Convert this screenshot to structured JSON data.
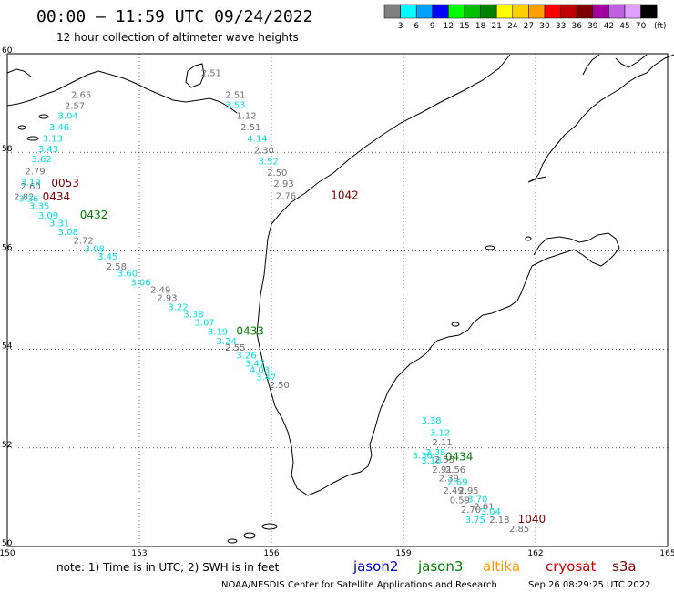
{
  "header": {
    "title": "00:00 – 11:59 UTC 09/24/2022",
    "subtitle": "12 hour collection of altimeter wave heights"
  },
  "color_scale": {
    "unit_label": "(ft)",
    "bins": [
      {
        "label": "3",
        "color": "#808080"
      },
      {
        "label": "6",
        "color": "#00ffff"
      },
      {
        "label": "9",
        "color": "#00a0ff"
      },
      {
        "label": "12",
        "color": "#0000ff"
      },
      {
        "label": "15",
        "color": "#00ff00"
      },
      {
        "label": "18",
        "color": "#00c000"
      },
      {
        "label": "21",
        "color": "#008000"
      },
      {
        "label": "24",
        "color": "#ffff00"
      },
      {
        "label": "27",
        "color": "#ffd000"
      },
      {
        "label": "30",
        "color": "#ffa000"
      },
      {
        "label": "33",
        "color": "#ff0000"
      },
      {
        "label": "36",
        "color": "#c00000"
      },
      {
        "label": "39",
        "color": "#800000"
      },
      {
        "label": "42",
        "color": "#a000a0"
      },
      {
        "label": "45",
        "color": "#c060e0"
      },
      {
        "label": "70",
        "color": "#e0a0ff"
      },
      {
        "label": "",
        "color": "#000000"
      }
    ]
  },
  "map": {
    "lon_range": [
      150,
      165
    ],
    "lat_range": [
      50,
      60
    ],
    "lon_ticks": [
      {
        "label": "150",
        "value": 150
      },
      {
        "label": "153",
        "value": 153
      },
      {
        "label": "156",
        "value": 156
      },
      {
        "label": "159",
        "value": 159
      },
      {
        "label": "162",
        "value": 162
      },
      {
        "label": "165",
        "value": 165
      }
    ],
    "lat_ticks": [
      {
        "label": "60",
        "value": 60
      },
      {
        "label": "58",
        "value": 58
      },
      {
        "label": "56",
        "value": 56
      },
      {
        "label": "54",
        "value": 54
      },
      {
        "label": "52",
        "value": 52
      },
      {
        "label": "50",
        "value": 50
      }
    ],
    "colors": {
      "gray": "#707070",
      "cyan": "#00e0e0",
      "green": "#008000",
      "maroon": "#800000"
    }
  },
  "wave_labels": [
    {
      "text": "2.51",
      "lon": 154.4,
      "lat": 59.55,
      "color": "gray"
    },
    {
      "text": "2.65",
      "lon": 151.45,
      "lat": 59.1,
      "color": "gray"
    },
    {
      "text": "2.57",
      "lon": 151.3,
      "lat": 58.88,
      "color": "gray"
    },
    {
      "text": "3.04",
      "lon": 151.15,
      "lat": 58.68,
      "color": "cyan"
    },
    {
      "text": "3.46",
      "lon": 150.95,
      "lat": 58.45,
      "color": "cyan"
    },
    {
      "text": "3.13",
      "lon": 150.8,
      "lat": 58.22,
      "color": "cyan"
    },
    {
      "text": "3.43",
      "lon": 150.7,
      "lat": 58.0,
      "color": "cyan"
    },
    {
      "text": "3.62",
      "lon": 150.55,
      "lat": 57.8,
      "color": "cyan"
    },
    {
      "text": "2.79",
      "lon": 150.4,
      "lat": 57.55,
      "color": "gray"
    },
    {
      "text": "3.19",
      "lon": 150.3,
      "lat": 57.33,
      "color": "cyan"
    },
    {
      "text": "2.60",
      "lon": 150.3,
      "lat": 57.25,
      "color": "gray"
    },
    {
      "text": "2.82",
      "lon": 150.15,
      "lat": 57.03,
      "color": "gray"
    },
    {
      "text": "3.36",
      "lon": 150.25,
      "lat": 57.0,
      "color": "cyan"
    },
    {
      "text": "3.35",
      "lon": 150.5,
      "lat": 56.85,
      "color": "cyan"
    },
    {
      "text": "3.09",
      "lon": 150.7,
      "lat": 56.65,
      "color": "cyan"
    },
    {
      "text": "3.31",
      "lon": 150.95,
      "lat": 56.5,
      "color": "cyan"
    },
    {
      "text": "3.08",
      "lon": 151.15,
      "lat": 56.32,
      "color": "cyan"
    },
    {
      "text": "2.72",
      "lon": 151.5,
      "lat": 56.15,
      "color": "gray"
    },
    {
      "text": "3.08",
      "lon": 151.75,
      "lat": 55.98,
      "color": "cyan"
    },
    {
      "text": "3.45",
      "lon": 152.05,
      "lat": 55.82,
      "color": "cyan"
    },
    {
      "text": "2.58",
      "lon": 152.25,
      "lat": 55.62,
      "color": "gray"
    },
    {
      "text": "3.60",
      "lon": 152.5,
      "lat": 55.48,
      "color": "cyan"
    },
    {
      "text": "3.06",
      "lon": 152.8,
      "lat": 55.3,
      "color": "cyan"
    },
    {
      "text": "2.49",
      "lon": 153.25,
      "lat": 55.15,
      "color": "gray"
    },
    {
      "text": "2.93",
      "lon": 153.4,
      "lat": 54.98,
      "color": "gray"
    },
    {
      "text": "3.22",
      "lon": 153.65,
      "lat": 54.8,
      "color": "cyan"
    },
    {
      "text": "3.38",
      "lon": 154.0,
      "lat": 54.65,
      "color": "cyan"
    },
    {
      "text": "3.07",
      "lon": 154.25,
      "lat": 54.48,
      "color": "cyan"
    },
    {
      "text": "3.19",
      "lon": 154.55,
      "lat": 54.3,
      "color": "cyan"
    },
    {
      "text": "3.24",
      "lon": 154.75,
      "lat": 54.1,
      "color": "cyan"
    },
    {
      "text": "2.55",
      "lon": 154.95,
      "lat": 53.97,
      "color": "gray"
    },
    {
      "text": "3.26",
      "lon": 155.2,
      "lat": 53.82,
      "color": "cyan"
    },
    {
      "text": "3.47",
      "lon": 155.4,
      "lat": 53.65,
      "color": "cyan"
    },
    {
      "text": "4.03",
      "lon": 155.5,
      "lat": 53.52,
      "color": "cyan"
    },
    {
      "text": "3.47",
      "lon": 155.65,
      "lat": 53.37,
      "color": "cyan"
    },
    {
      "text": "2.50",
      "lon": 155.95,
      "lat": 53.22,
      "color": "gray"
    },
    {
      "text": "2.51",
      "lon": 154.95,
      "lat": 59.1,
      "color": "gray"
    },
    {
      "text": "3.53",
      "lon": 154.95,
      "lat": 58.9,
      "color": "cyan"
    },
    {
      "text": "1.12",
      "lon": 155.2,
      "lat": 58.68,
      "color": "gray"
    },
    {
      "text": "2.51",
      "lon": 155.3,
      "lat": 58.45,
      "color": "gray"
    },
    {
      "text": "4.14",
      "lon": 155.45,
      "lat": 58.22,
      "color": "cyan"
    },
    {
      "text": "2.30",
      "lon": 155.6,
      "lat": 57.98,
      "color": "gray"
    },
    {
      "text": "3.52",
      "lon": 155.7,
      "lat": 57.75,
      "color": "cyan"
    },
    {
      "text": "2.50",
      "lon": 155.9,
      "lat": 57.52,
      "color": "gray"
    },
    {
      "text": "2.93",
      "lon": 156.05,
      "lat": 57.3,
      "color": "gray"
    },
    {
      "text": "2.76",
      "lon": 156.1,
      "lat": 57.05,
      "color": "gray"
    },
    {
      "text": "3.38",
      "lon": 159.4,
      "lat": 52.5,
      "color": "cyan"
    },
    {
      "text": "3.12",
      "lon": 159.6,
      "lat": 52.25,
      "color": "cyan"
    },
    {
      "text": "2.11",
      "lon": 159.65,
      "lat": 52.05,
      "color": "gray"
    },
    {
      "text": "3.38",
      "lon": 159.5,
      "lat": 51.85,
      "color": "cyan"
    },
    {
      "text": "3.36",
      "lon": 159.2,
      "lat": 51.78,
      "color": "cyan"
    },
    {
      "text": "3.18",
      "lon": 159.4,
      "lat": 51.68,
      "color": "cyan"
    },
    {
      "text": "2.55",
      "lon": 159.7,
      "lat": 51.7,
      "color": "gray"
    },
    {
      "text": "2.91",
      "lon": 159.65,
      "lat": 51.5,
      "color": "gray"
    },
    {
      "text": "2.56",
      "lon": 159.95,
      "lat": 51.5,
      "color": "gray"
    },
    {
      "text": "2.39",
      "lon": 159.8,
      "lat": 51.32,
      "color": "gray"
    },
    {
      "text": "2.69",
      "lon": 160.0,
      "lat": 51.25,
      "color": "cyan"
    },
    {
      "text": "2.49",
      "lon": 159.9,
      "lat": 51.07,
      "color": "gray"
    },
    {
      "text": "2.95",
      "lon": 160.25,
      "lat": 51.07,
      "color": "gray"
    },
    {
      "text": "0.59",
      "lon": 160.05,
      "lat": 50.88,
      "color": "gray"
    },
    {
      "text": "3.70",
      "lon": 160.45,
      "lat": 50.9,
      "color": "cyan"
    },
    {
      "text": "2.61",
      "lon": 160.6,
      "lat": 50.75,
      "color": "gray"
    },
    {
      "text": "2.70",
      "lon": 160.3,
      "lat": 50.68,
      "color": "gray"
    },
    {
      "text": "3.04",
      "lon": 160.75,
      "lat": 50.65,
      "color": "cyan"
    },
    {
      "text": "3.75",
      "lon": 160.4,
      "lat": 50.48,
      "color": "cyan"
    },
    {
      "text": "2.18",
      "lon": 160.95,
      "lat": 50.48,
      "color": "gray"
    },
    {
      "text": "2.85",
      "lon": 161.4,
      "lat": 50.3,
      "color": "gray"
    }
  ],
  "time_labels": [
    {
      "text": "0053",
      "lon": 151.0,
      "lat": 57.3,
      "color": "maroon"
    },
    {
      "text": "0434",
      "lon": 150.8,
      "lat": 57.02,
      "color": "maroon"
    },
    {
      "text": "0432",
      "lon": 151.65,
      "lat": 56.65,
      "color": "green"
    },
    {
      "text": "0433",
      "lon": 155.2,
      "lat": 54.3,
      "color": "green"
    },
    {
      "text": "1042",
      "lon": 157.35,
      "lat": 57.05,
      "color": "maroon"
    },
    {
      "text": "0434",
      "lon": 159.95,
      "lat": 51.75,
      "color": "green"
    },
    {
      "text": "1040",
      "lon": 161.6,
      "lat": 50.48,
      "color": "maroon"
    }
  ],
  "footer": {
    "note": "note:  1) Time is in UTC;  2) SWH is in feet",
    "credit": "NOAA/NESDIS Center for Satellite Applications and Research",
    "timestamp": "Sep 26 08:29:25 UTC 2022",
    "satellites": [
      {
        "name": "jason2",
        "color": "#0000cc"
      },
      {
        "name": "jason3",
        "color": "#008000"
      },
      {
        "name": "altika",
        "color": "#ff9900"
      },
      {
        "name": "cryosat",
        "color": "#cc0000"
      },
      {
        "name": "s3a",
        "color": "#800000"
      }
    ]
  }
}
